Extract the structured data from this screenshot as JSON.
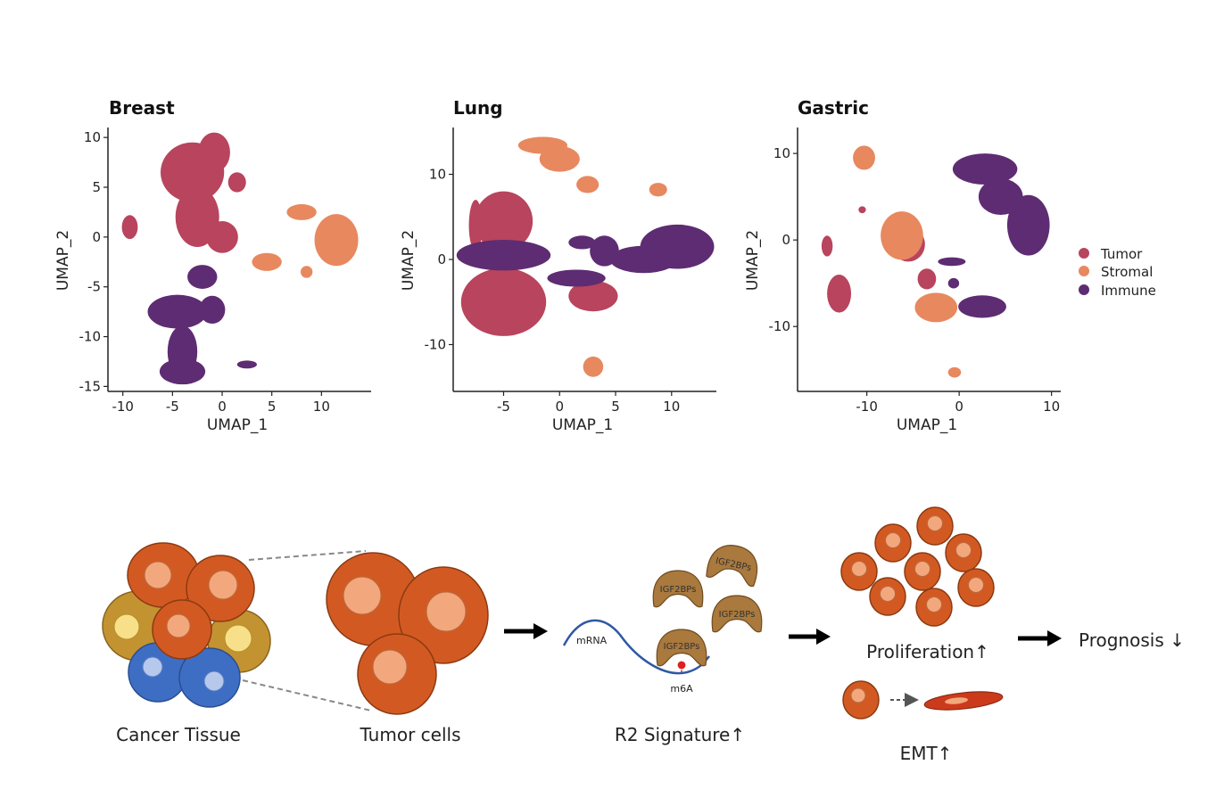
{
  "colors": {
    "tumor": "#b8445d",
    "stromal": "#e8885e",
    "immune": "#5e2c72",
    "cell": "#d25a22",
    "cell_nucleus": "#f3a77c",
    "igf": "#a9793d"
  },
  "chart_data": [
    {
      "type": "scatter",
      "title": "Breast",
      "xlabel": "UMAP_1",
      "ylabel": "UMAP_2",
      "xlim": [
        -11.5,
        15
      ],
      "ylim": [
        -15.5,
        11
      ],
      "xticks": [
        -10,
        -5,
        0,
        5,
        10
      ],
      "yticks": [
        10,
        5,
        0,
        -5,
        -10,
        -15
      ],
      "series": [
        {
          "name": "Tumor",
          "color": "#b8445d",
          "blobs": [
            [
              -3,
              6.5,
              3.2,
              3
            ],
            [
              -0.8,
              8.5,
              1.6,
              2
            ],
            [
              -2.5,
              2,
              2.2,
              3
            ],
            [
              0,
              0,
              1.6,
              1.6
            ],
            [
              -9.3,
              1,
              0.8,
              1.2
            ],
            [
              1.5,
              5.5,
              0.9,
              1
            ]
          ]
        },
        {
          "name": "Stromal",
          "color": "#e8885e",
          "blobs": [
            [
              11.5,
              -0.3,
              2.2,
              2.6
            ],
            [
              8,
              2.5,
              1.5,
              0.8
            ],
            [
              4.5,
              -2.5,
              1.5,
              0.9
            ],
            [
              8.5,
              -3.5,
              0.6,
              0.6
            ]
          ]
        },
        {
          "name": "Immune",
          "color": "#5e2c72",
          "blobs": [
            [
              -4.5,
              -7.5,
              3,
              1.7
            ],
            [
              -1,
              -7.3,
              1.3,
              1.4
            ],
            [
              -4,
              -11.5,
              1.5,
              2.6
            ],
            [
              -4,
              -13.5,
              2.3,
              1.3
            ],
            [
              -2,
              -4,
              1.5,
              1.2
            ],
            [
              2.5,
              -12.8,
              1,
              0.4
            ]
          ]
        }
      ]
    },
    {
      "type": "scatter",
      "title": "Lung",
      "xlabel": "UMAP_1",
      "ylabel": "UMAP_2",
      "xlim": [
        -9.5,
        14
      ],
      "ylim": [
        -15.5,
        15.5
      ],
      "xticks": [
        -5,
        0,
        5,
        10
      ],
      "yticks": [
        10,
        0,
        -10
      ],
      "series": [
        {
          "name": "Tumor",
          "color": "#b8445d",
          "blobs": [
            [
              -5,
              -5,
              3.8,
              4
            ],
            [
              -5,
              4.5,
              2.6,
              3.5
            ],
            [
              3,
              -4.3,
              2.2,
              1.8
            ],
            [
              -7.5,
              4,
              0.6,
              3
            ]
          ]
        },
        {
          "name": "Stromal",
          "color": "#e8885e",
          "blobs": [
            [
              -1.5,
              13.4,
              2.2,
              1
            ],
            [
              0,
              11.8,
              1.8,
              1.5
            ],
            [
              2.5,
              8.8,
              1,
              1
            ],
            [
              8.8,
              8.2,
              0.8,
              0.8
            ],
            [
              3,
              -12.6,
              0.9,
              1.2
            ]
          ]
        },
        {
          "name": "Immune",
          "color": "#5e2c72",
          "blobs": [
            [
              10.5,
              1.5,
              3.3,
              2.6
            ],
            [
              7.5,
              0,
              3,
              1.6
            ],
            [
              4,
              1,
              1.3,
              1.8
            ],
            [
              -5,
              0.5,
              4.2,
              1.8
            ],
            [
              1.5,
              -2.2,
              2.6,
              1
            ],
            [
              2,
              2,
              1.2,
              0.8
            ]
          ]
        }
      ]
    },
    {
      "type": "scatter",
      "title": "Gastric",
      "xlabel": "UMAP_1",
      "ylabel": "UMAP_2",
      "xlim": [
        -17.5,
        11
      ],
      "ylim": [
        -17.5,
        13
      ],
      "xticks": [
        -10,
        0,
        10
      ],
      "yticks": [
        10,
        0,
        -10
      ],
      "legend": {
        "entries": [
          "Tumor",
          "Stromal",
          "Immune"
        ],
        "position": "right"
      },
      "series": [
        {
          "name": "Tumor",
          "color": "#b8445d",
          "blobs": [
            [
              -13,
              -6.2,
              1.3,
              2.2
            ],
            [
              -14.3,
              -0.7,
              0.6,
              1.2
            ],
            [
              -5.5,
              -0.5,
              1.8,
              2
            ],
            [
              -3.5,
              -4.5,
              1,
              1.2
            ],
            [
              -10.5,
              3.5,
              0.4,
              0.4
            ]
          ]
        },
        {
          "name": "Stromal",
          "color": "#e8885e",
          "blobs": [
            [
              -10.3,
              9.5,
              1.2,
              1.4
            ],
            [
              -6.2,
              0.5,
              2.3,
              2.8
            ],
            [
              -2.5,
              -7.8,
              2.3,
              1.7
            ],
            [
              -0.5,
              -15.3,
              0.7,
              0.6
            ]
          ]
        },
        {
          "name": "Immune",
          "color": "#5e2c72",
          "blobs": [
            [
              2.8,
              8.2,
              3.5,
              1.8
            ],
            [
              7.5,
              1.7,
              2.3,
              3.5
            ],
            [
              4.5,
              5,
              2.4,
              2.1
            ],
            [
              2.5,
              -7.7,
              2.6,
              1.3
            ],
            [
              -0.8,
              -2.5,
              1.5,
              0.5
            ],
            [
              -0.6,
              -5,
              0.6,
              0.6
            ]
          ]
        }
      ]
    }
  ],
  "legend": {
    "items": [
      {
        "label": "Tumor"
      },
      {
        "label": "Stromal"
      },
      {
        "label": "Immune"
      }
    ]
  },
  "diagram": {
    "cancer_tissue": "Cancer Tissue",
    "tumor_cells": "Tumor cells",
    "mrna": "mRNA",
    "m6a": "m6A",
    "igf2bps": "IGF2BPs",
    "r2_signature": "R2 Signature↑",
    "proliferation": "Proliferation↑",
    "emt": "EMT↑",
    "prognosis": "Prognosis ↓"
  }
}
